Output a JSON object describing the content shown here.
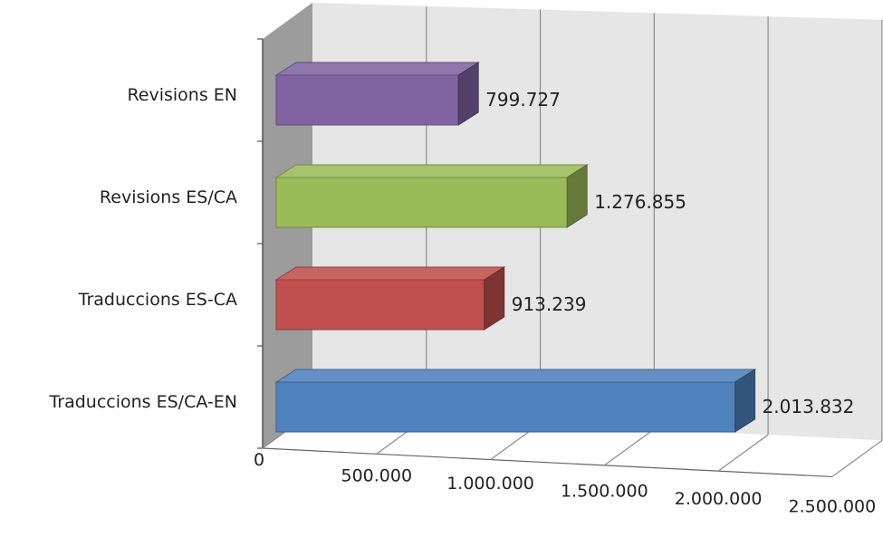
{
  "chart_data": {
    "type": "bar",
    "orientation": "horizontal",
    "style": "3d-clustered-bar",
    "categories": [
      "Revisions EN",
      "Revisions ES/CA",
      "Traduccions ES-CA",
      "Traduccions ES/CA-EN"
    ],
    "values": [
      799727,
      1276855,
      913239,
      2013832
    ],
    "value_labels": [
      "799.727",
      "1.276.855",
      "913.239",
      "2.013.832"
    ],
    "colors": [
      "#8064A2",
      "#9BBB59",
      "#C0504D",
      "#4F81BD"
    ],
    "xlim": [
      0,
      2500000
    ],
    "xticks": [
      0,
      500000,
      1000000,
      1500000,
      2000000,
      2500000
    ],
    "xtick_labels": [
      "0",
      "500.000",
      "1.000.000",
      "1.500.000",
      "2.000.000",
      "2.500.000"
    ],
    "grid": true,
    "legend": "none",
    "title": "",
    "xlabel": "",
    "ylabel": ""
  }
}
